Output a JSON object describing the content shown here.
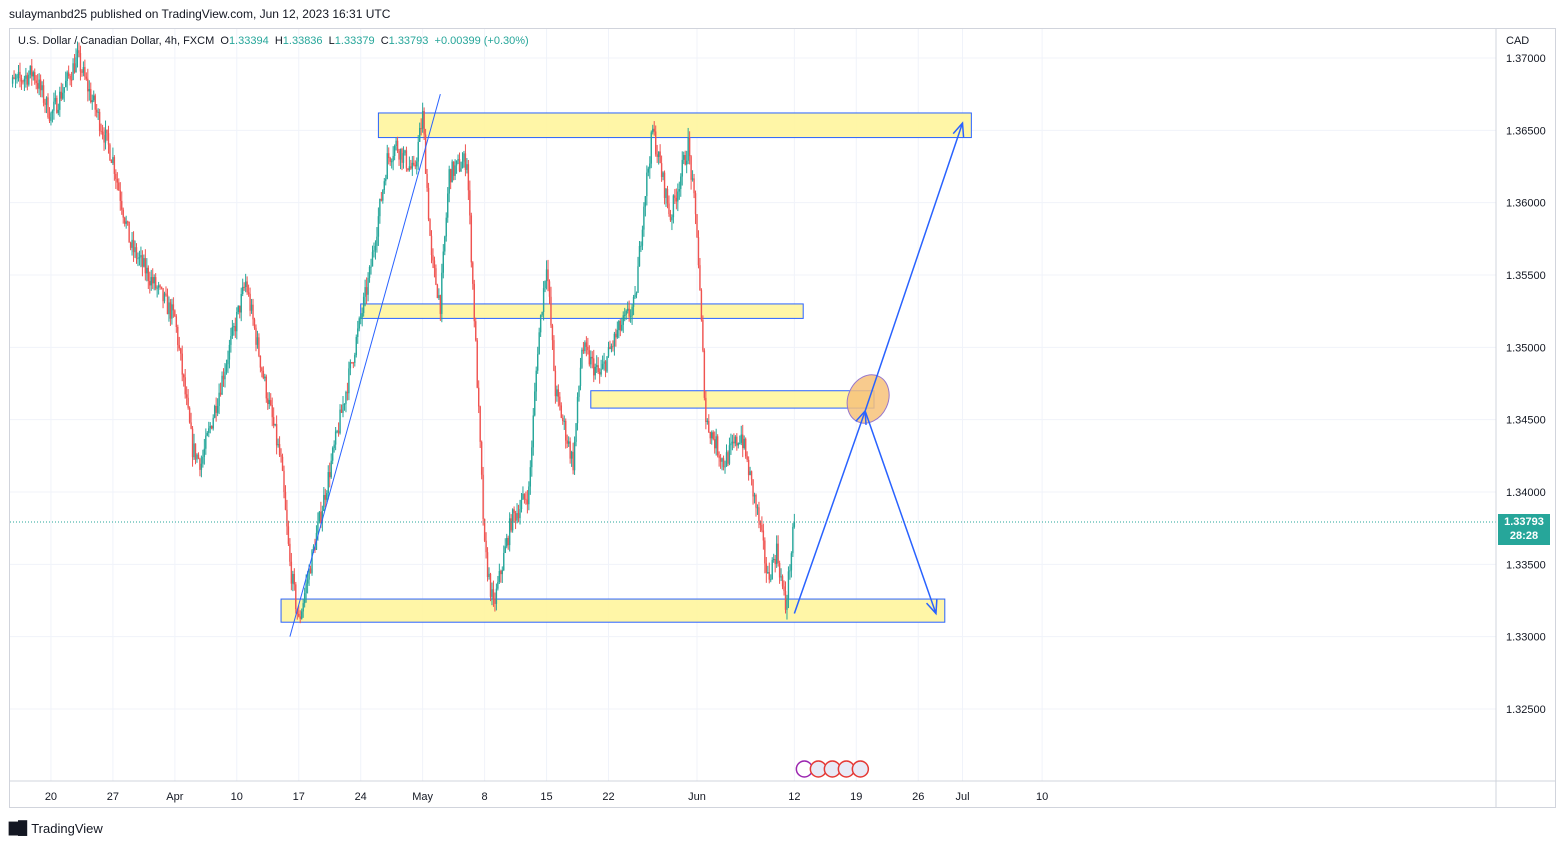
{
  "header": {
    "published_by": "sulaymanbd25 published on TradingView.com, Jun 12, 2023 16:31 UTC"
  },
  "legend": {
    "symbol": "U.S. Dollar / Canadian Dollar, 4h, FXCM",
    "open_label": "O",
    "open": "1.33394",
    "high_label": "H",
    "high": "1.33836",
    "low_label": "L",
    "low": "1.33379",
    "close_label": "C",
    "close": "1.33793",
    "change": "+0.00399 (+0.30%)"
  },
  "price_axis": {
    "currency": "CAD",
    "last_price": "1.33793",
    "countdown": "28:28"
  },
  "footer": {
    "brand": "TradingView"
  },
  "colors": {
    "up": "#26a69a",
    "down": "#ef5350",
    "zone_fill": "#fff59d",
    "zone_border": "#2962ff",
    "arrow": "#2962ff",
    "grid": "#f0f3fa"
  },
  "chart_data": {
    "type": "candlestick",
    "ylim": [
      1.3205,
      1.372
    ],
    "y_ticks": [
      1.37,
      1.365,
      1.36,
      1.355,
      1.35,
      1.345,
      1.34,
      1.335,
      1.33,
      1.325
    ],
    "y_tick_labels": [
      "1.37000",
      "1.36500",
      "1.36000",
      "1.35500",
      "1.35000",
      "1.34500",
      "1.34000",
      "1.33500",
      "1.33000",
      "1.32500"
    ],
    "x_tick_labels": [
      "20",
      "27",
      "Apr",
      "10",
      "17",
      "24",
      "May",
      "8",
      "15",
      "22",
      "Jun",
      "12",
      "19",
      "26",
      "Jul",
      "10"
    ],
    "x_tick_dates": [
      "2023-03-20",
      "2023-03-27",
      "2023-04-03",
      "2023-04-10",
      "2023-04-17",
      "2023-04-24",
      "2023-05-01",
      "2023-05-08",
      "2023-05-15",
      "2023-05-22",
      "2023-06-01",
      "2023-06-12",
      "2023-06-19",
      "2023-06-26",
      "2023-07-01",
      "2023-07-10"
    ],
    "price_path": [
      [
        "2023-03-15",
        1.368
      ],
      [
        "2023-03-18",
        1.369
      ],
      [
        "2023-03-20",
        1.366
      ],
      [
        "2023-03-23",
        1.37
      ],
      [
        "2023-03-27",
        1.363
      ],
      [
        "2023-03-29",
        1.357
      ],
      [
        "2023-04-01",
        1.354
      ],
      [
        "2023-04-03",
        1.352
      ],
      [
        "2023-04-05",
        1.343
      ],
      [
        "2023-04-06",
        1.342
      ],
      [
        "2023-04-08",
        1.347
      ],
      [
        "2023-04-10",
        1.352
      ],
      [
        "2023-04-11",
        1.3545
      ],
      [
        "2023-04-13",
        1.348
      ],
      [
        "2023-04-15",
        1.342
      ],
      [
        "2023-04-16",
        1.335
      ],
      [
        "2023-04-17",
        1.331
      ],
      [
        "2023-04-19",
        1.337
      ],
      [
        "2023-04-21",
        1.343
      ],
      [
        "2023-04-23",
        1.349
      ],
      [
        "2023-04-25",
        1.355
      ],
      [
        "2023-04-27",
        1.363
      ],
      [
        "2023-04-28",
        1.364
      ],
      [
        "2023-04-30",
        1.362
      ],
      [
        "2023-05-01",
        1.366
      ],
      [
        "2023-05-02",
        1.356
      ],
      [
        "2023-05-03",
        1.353
      ],
      [
        "2023-05-04",
        1.362
      ],
      [
        "2023-05-06",
        1.363
      ],
      [
        "2023-05-07",
        1.35
      ],
      [
        "2023-05-08",
        1.336
      ],
      [
        "2023-05-09",
        1.332
      ],
      [
        "2023-05-11",
        1.338
      ],
      [
        "2023-05-13",
        1.34
      ],
      [
        "2023-05-14",
        1.35
      ],
      [
        "2023-05-15",
        1.356
      ],
      [
        "2023-05-16",
        1.347
      ],
      [
        "2023-05-18",
        1.342
      ],
      [
        "2023-05-19",
        1.35
      ],
      [
        "2023-05-21",
        1.348
      ],
      [
        "2023-05-23",
        1.351
      ],
      [
        "2023-05-25",
        1.353
      ],
      [
        "2023-05-26",
        1.36
      ],
      [
        "2023-05-27",
        1.365
      ],
      [
        "2023-05-29",
        1.359
      ],
      [
        "2023-05-31",
        1.364
      ],
      [
        "2023-06-01",
        1.358
      ],
      [
        "2023-06-02",
        1.345
      ],
      [
        "2023-06-04",
        1.342
      ],
      [
        "2023-06-06",
        1.344
      ],
      [
        "2023-06-08",
        1.338
      ],
      [
        "2023-06-09",
        1.334
      ],
      [
        "2023-06-10",
        1.336
      ],
      [
        "2023-06-11",
        1.332
      ],
      [
        "2023-06-12",
        1.3379
      ]
    ],
    "last_price": 1.33793,
    "zones": [
      {
        "from": "2023-04-26",
        "to": "2023-07-02",
        "low": 1.3645,
        "high": 1.3662
      },
      {
        "from": "2023-04-24",
        "to": "2023-06-13",
        "low": 1.352,
        "high": 1.353
      },
      {
        "from": "2023-05-20",
        "to": "2023-06-21",
        "low": 1.3458,
        "high": 1.347
      },
      {
        "from": "2023-04-15",
        "to": "2023-06-29",
        "low": 1.331,
        "high": 1.3326
      }
    ],
    "trendline": [
      [
        "2023-04-16",
        1.33
      ],
      [
        "2023-05-03",
        1.3675
      ]
    ],
    "projection": [
      [
        "2023-06-12",
        1.3316
      ],
      [
        "2023-06-20",
        1.3456
      ],
      [
        "2023-06-28",
        1.3316
      ],
      [
        "2023-06-20",
        1.3456
      ],
      [
        "2023-07-01",
        1.3655
      ]
    ]
  }
}
